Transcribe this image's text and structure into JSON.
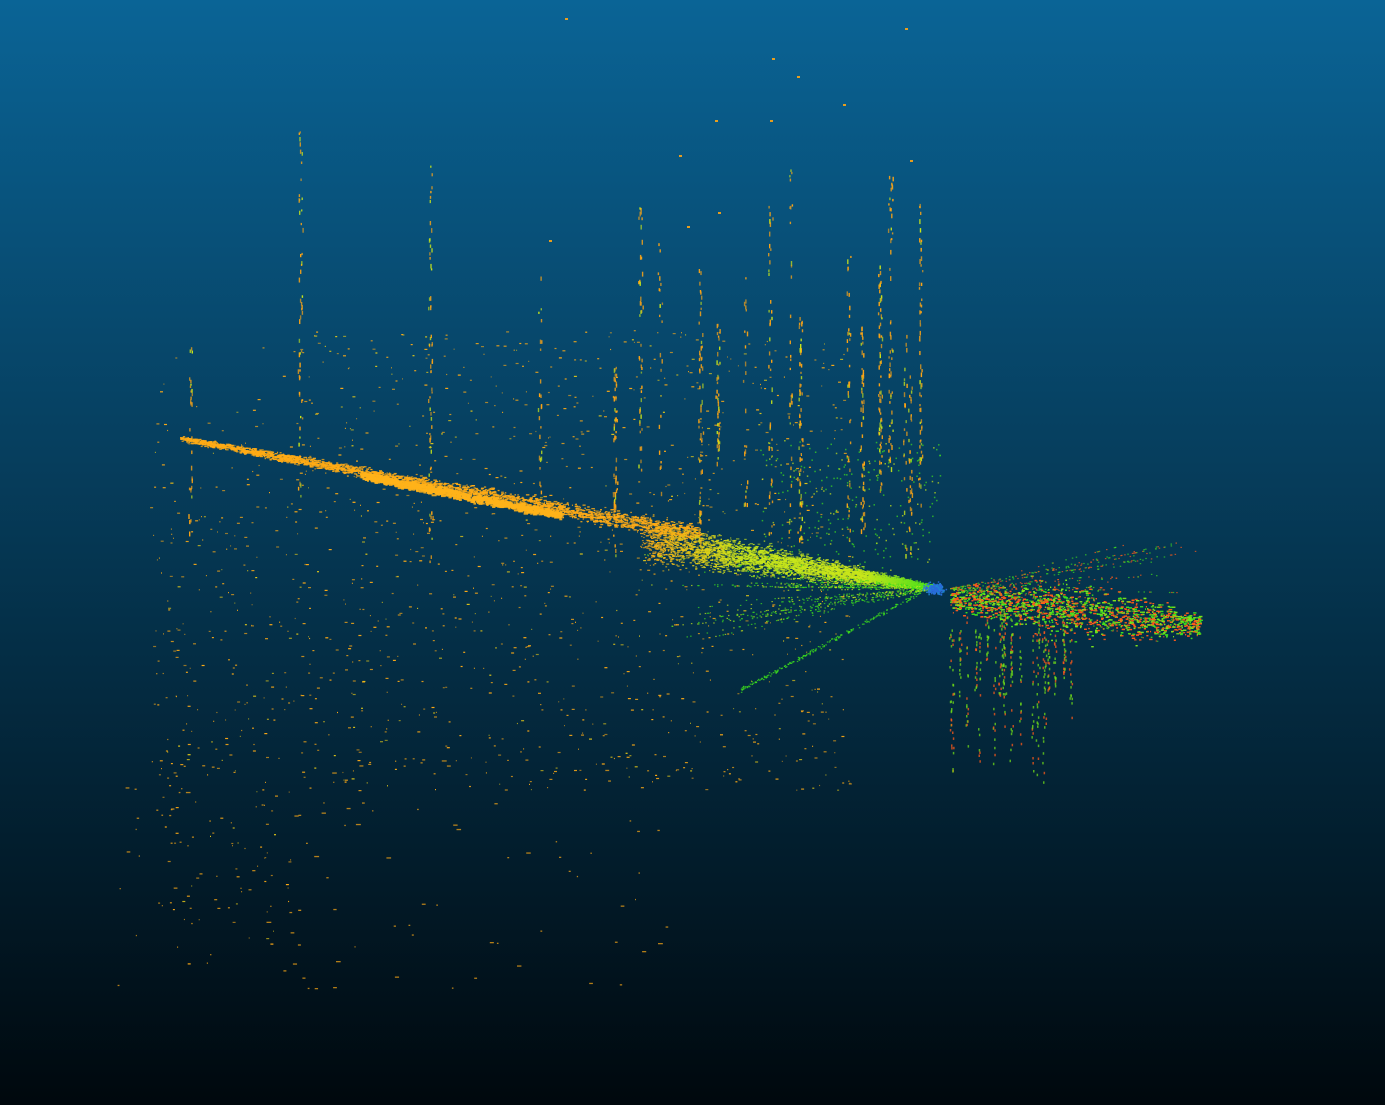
{
  "scene": {
    "type": "point-cloud-3d-view",
    "background": {
      "top_color": "#0a6496",
      "bottom_color": "#00080d"
    },
    "colormap": [
      "#1f5cc9",
      "#39e01e",
      "#9ae812",
      "#e8e014",
      "#ffb216",
      "#ff8a12",
      "#ff3a12"
    ],
    "clusters": [
      {
        "name": "far-ground-streak",
        "color": "#ffab15"
      },
      {
        "name": "mid-dense-cone",
        "color": "#c8e61a"
      },
      {
        "name": "near-ground-patch",
        "color": "#ff5a1a"
      },
      {
        "name": "vertical-structures",
        "color": "#ffa514"
      },
      {
        "name": "sensor-center",
        "color": "#2a6adc"
      }
    ]
  }
}
